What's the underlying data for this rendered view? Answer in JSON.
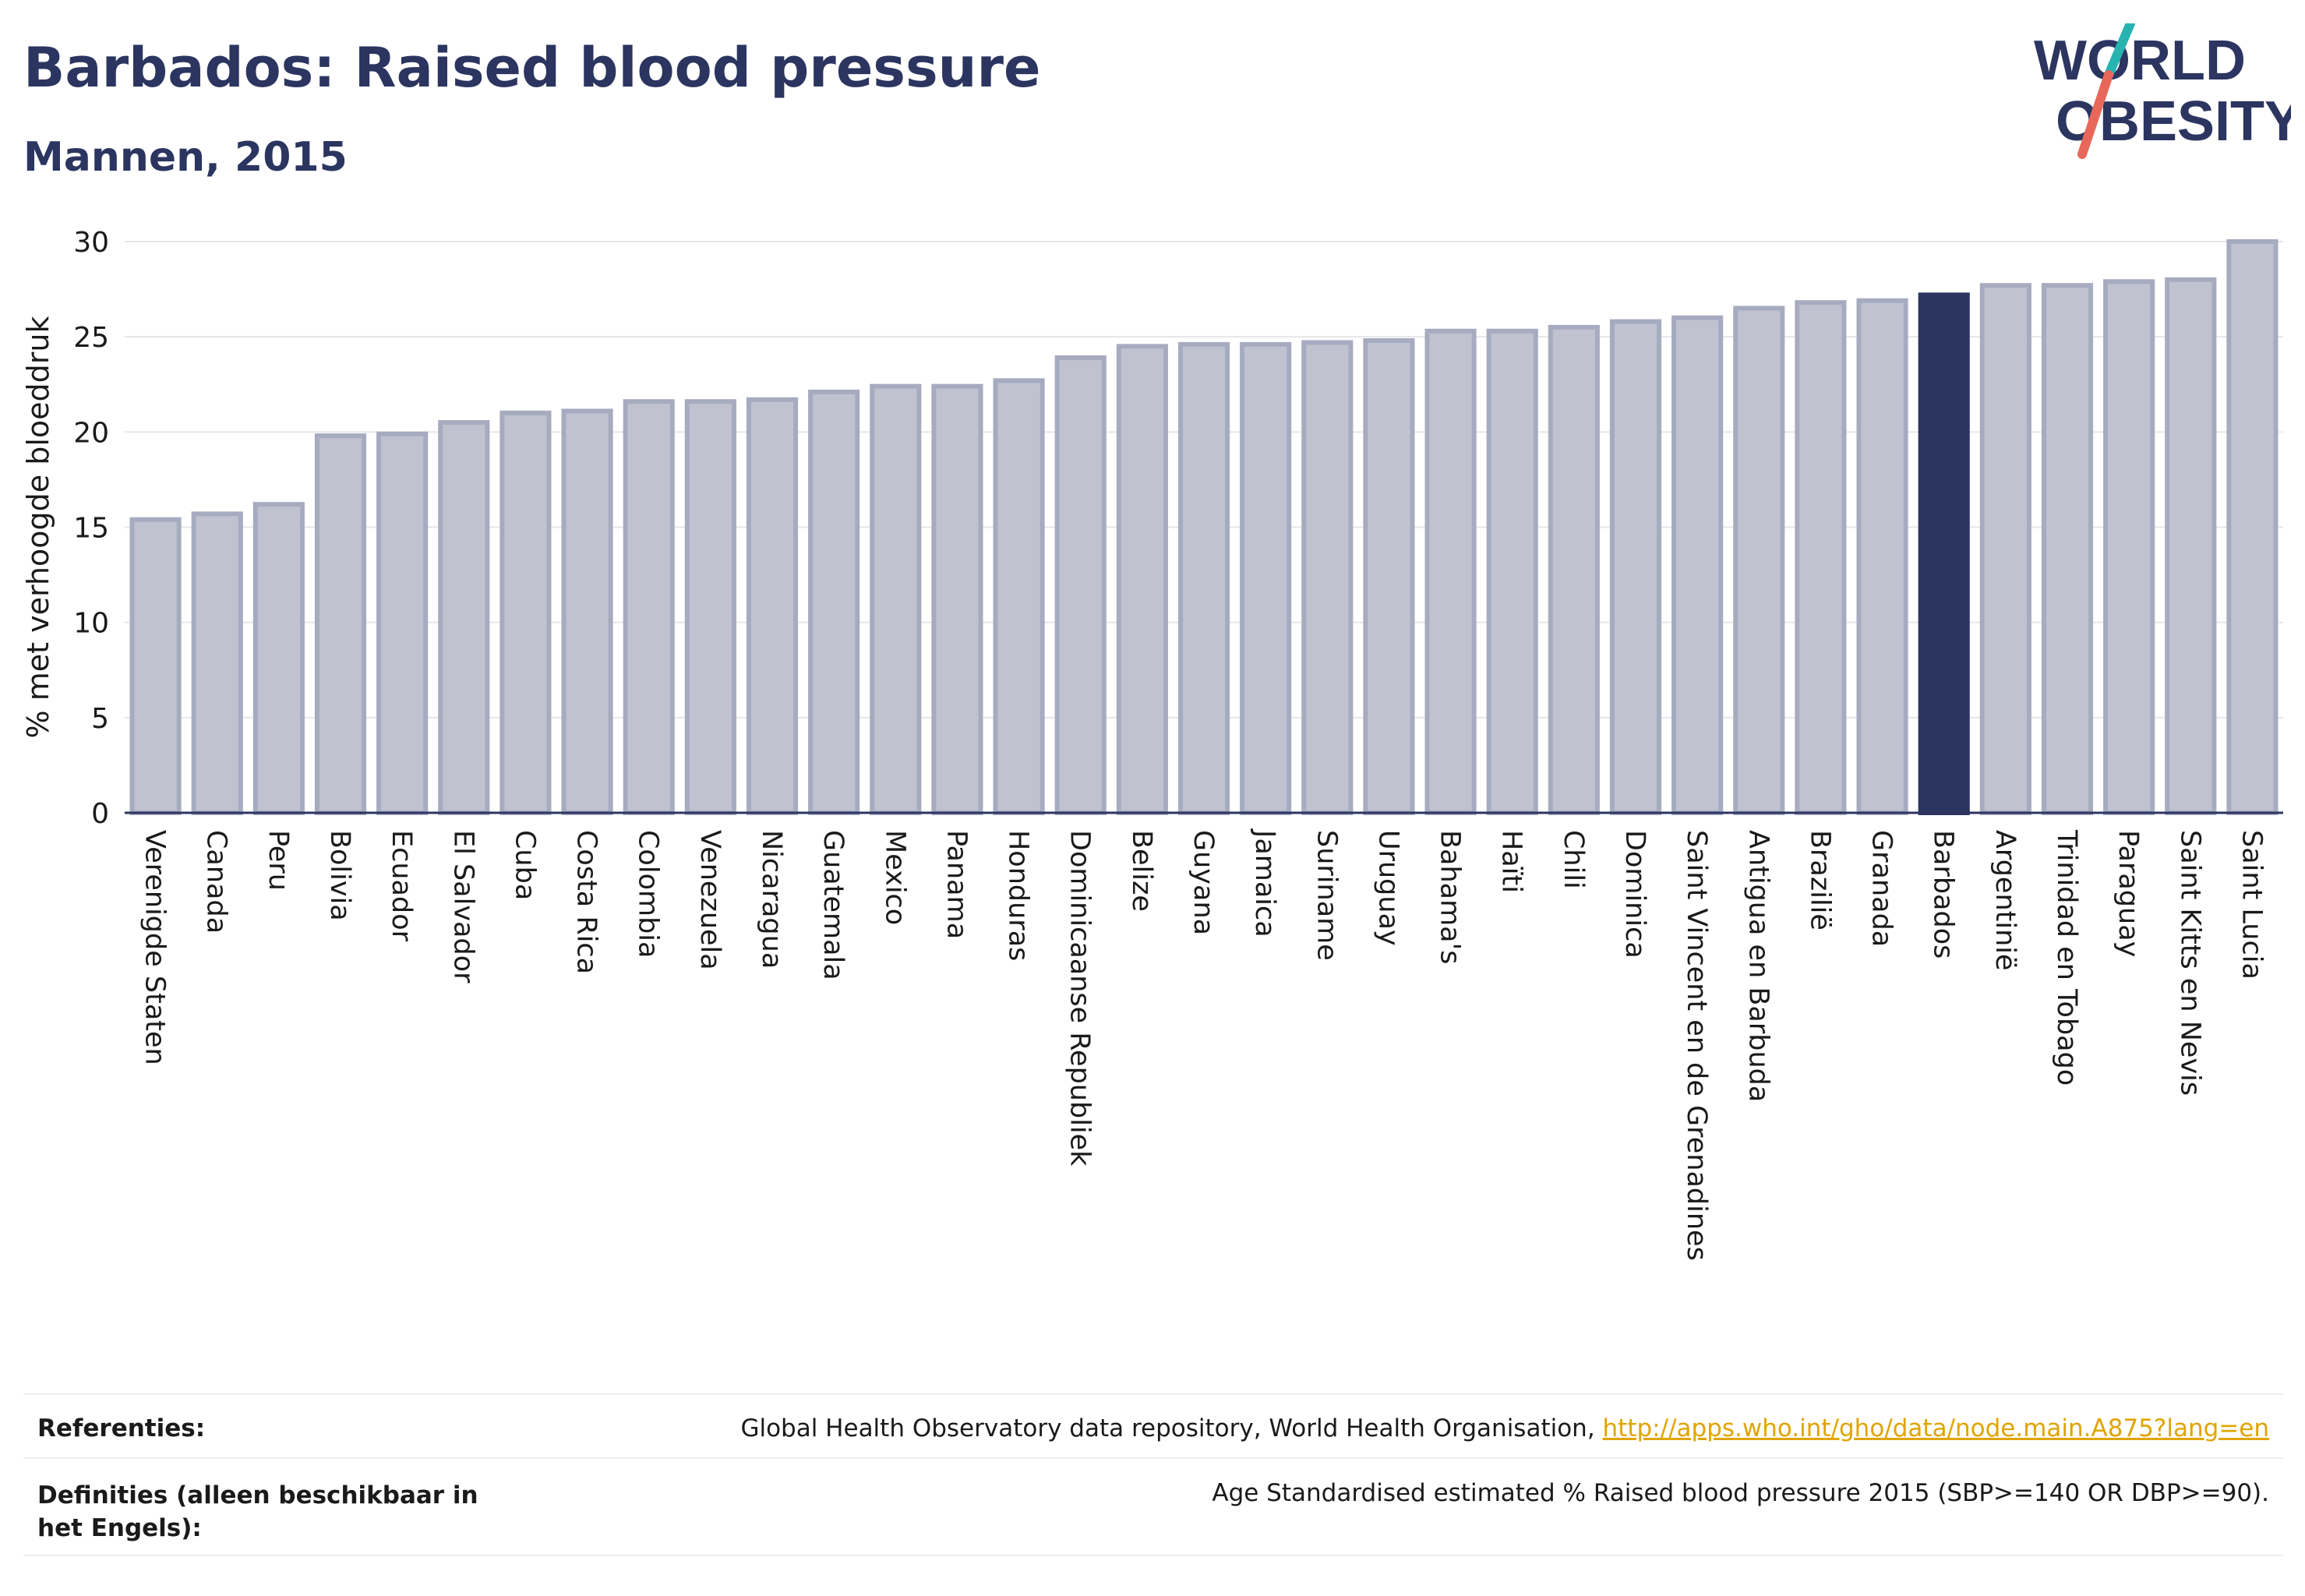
{
  "header": {
    "title": "Barbados: Raised blood pressure",
    "subtitle": "Mannen, 2015"
  },
  "logo": {
    "line1": "WORLD",
    "line2": "OBESITY"
  },
  "colors": {
    "bar": "#c0c3cf",
    "bar_stroke": "#a7abc0",
    "highlight": "#2b3560",
    "text": "#2b3560",
    "grid": "#e6e6ea",
    "link": "#e0a400"
  },
  "chart_data": {
    "type": "bar",
    "ylabel": "% met verhoogde bloeddruk",
    "ylim": [
      0,
      30
    ],
    "yticks": [
      0,
      5,
      10,
      15,
      20,
      25,
      30
    ],
    "grid": true,
    "highlight": "Barbados",
    "categories": [
      "Verenigde Staten",
      "Canada",
      "Peru",
      "Bolivia",
      "Ecuador",
      "El Salvador",
      "Cuba",
      "Costa Rica",
      "Colombia",
      "Venezuela",
      "Nicaragua",
      "Guatemala",
      "Mexico",
      "Panama",
      "Honduras",
      "Dominicaanse Republiek",
      "Belize",
      "Guyana",
      "Jamaica",
      "Suriname",
      "Uruguay",
      "Bahama's",
      "Haïti",
      "Chili",
      "Dominica",
      "Saint Vincent en de Grenadines",
      "Antigua en Barbuda",
      "Brazilië",
      "Granada",
      "Barbados",
      "Argentinië",
      "Trinidad en Tobago",
      "Paraguay",
      "Saint Kitts en Nevis",
      "Saint Lucia"
    ],
    "values": [
      15.4,
      15.7,
      16.2,
      19.8,
      19.9,
      20.5,
      21.0,
      21.1,
      21.6,
      21.6,
      21.7,
      22.1,
      22.4,
      22.4,
      22.7,
      23.9,
      24.5,
      24.6,
      24.6,
      24.7,
      24.8,
      25.3,
      25.3,
      25.5,
      25.8,
      26.0,
      26.5,
      26.8,
      26.9,
      27.2,
      27.7,
      27.7,
      27.9,
      28.0,
      30.0
    ]
  },
  "footer": {
    "references_label": "Referenties:",
    "references_text": "Global Health Observatory data repository, World Health Organisation, ",
    "references_link": "http://apps.who.int/gho/data/node.main.A875?lang=en",
    "definitions_label": "Definities (alleen beschikbaar in het Engels):",
    "definitions_text": "Age Standardised estimated % Raised blood pressure 2015 (SBP>=140 OR DBP>=90)."
  }
}
